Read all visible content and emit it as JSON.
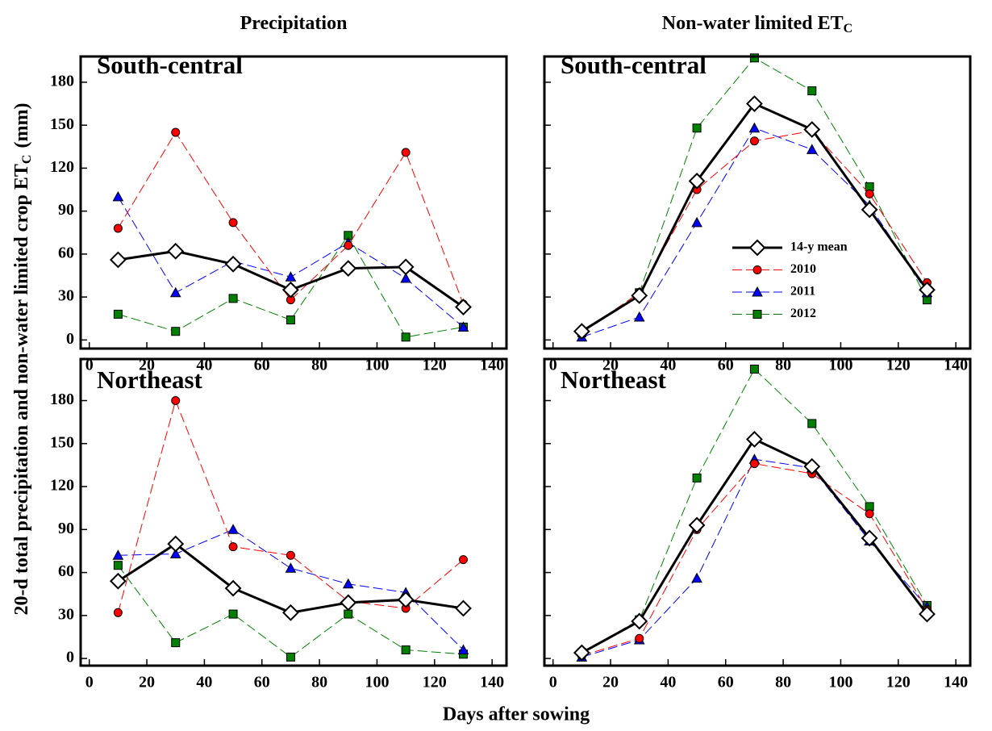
{
  "figure": {
    "xlabel": "Days after sowing",
    "ylabel": "20-d total precipitation and non-water limited crop ET",
    "ylabel_subscript": "C",
    "ylabel_unit": "(mm)"
  },
  "chart_data": [
    {
      "type": "line",
      "title": "Precipitation",
      "panel_label": "South-central",
      "x": [
        10,
        30,
        50,
        70,
        90,
        110,
        130
      ],
      "xlim": [
        -3,
        145
      ],
      "ylim": [
        -6,
        198
      ],
      "xticks": [
        0,
        20,
        40,
        60,
        80,
        100,
        120,
        140
      ],
      "yticks": [
        0,
        30,
        60,
        90,
        120,
        150,
        180
      ],
      "show_ytick_labels": true,
      "series": [
        {
          "name": "14-y mean",
          "color": "#000000",
          "marker": "diamond",
          "dashed": false,
          "values": [
            56,
            62,
            53,
            35,
            50,
            51,
            23
          ]
        },
        {
          "name": "2010",
          "color": "#ff0000",
          "marker": "circle",
          "dashed": true,
          "values": [
            78,
            145,
            82,
            28,
            66,
            131,
            25
          ]
        },
        {
          "name": "2011",
          "color": "#0000ff",
          "marker": "triangle",
          "dashed": true,
          "values": [
            100,
            33,
            55,
            44,
            68,
            43,
            9
          ]
        },
        {
          "name": "2012",
          "color": "#008000",
          "marker": "square",
          "dashed": true,
          "values": [
            18,
            6,
            29,
            14,
            73,
            2,
            9
          ]
        }
      ]
    },
    {
      "type": "line",
      "title": "Non-water limited ET",
      "title_subscript": "C",
      "panel_label": "South-central",
      "x": [
        10,
        30,
        50,
        70,
        90,
        110,
        130
      ],
      "xlim": [
        -3,
        145
      ],
      "ylim": [
        -6,
        198
      ],
      "xticks": [
        0,
        20,
        40,
        60,
        80,
        100,
        120,
        140
      ],
      "yticks": [
        0,
        30,
        60,
        90,
        120,
        150,
        180
      ],
      "show_ytick_labels": false,
      "legend": "right",
      "series": [
        {
          "name": "14-y mean",
          "color": "#000000",
          "marker": "diamond",
          "dashed": false,
          "values": [
            6,
            31,
            111,
            165,
            147,
            91,
            35
          ]
        },
        {
          "name": "2010",
          "color": "#ff0000",
          "marker": "circle",
          "dashed": true,
          "values": [
            5,
            33,
            105,
            139,
            146,
            102,
            40
          ]
        },
        {
          "name": "2011",
          "color": "#0000ff",
          "marker": "triangle",
          "dashed": true,
          "values": [
            2,
            16,
            82,
            148,
            133,
            94,
            33
          ]
        },
        {
          "name": "2012",
          "color": "#008000",
          "marker": "square",
          "dashed": true,
          "values": [
            5,
            33,
            148,
            197,
            174,
            107,
            28
          ]
        }
      ]
    },
    {
      "type": "line",
      "panel_label": "Northeast",
      "x": [
        10,
        30,
        50,
        70,
        90,
        110,
        130
      ],
      "xlim": [
        -3,
        145
      ],
      "ylim": [
        -5,
        209
      ],
      "xticks": [
        0,
        20,
        40,
        60,
        80,
        100,
        120,
        140
      ],
      "yticks": [
        0,
        30,
        60,
        90,
        120,
        150,
        180
      ],
      "show_ytick_labels": true,
      "series": [
        {
          "name": "14-y mean",
          "color": "#000000",
          "marker": "diamond",
          "dashed": false,
          "values": [
            54,
            80,
            49,
            32,
            39,
            41,
            35
          ]
        },
        {
          "name": "2010",
          "color": "#ff0000",
          "marker": "circle",
          "dashed": true,
          "values": [
            32,
            180,
            78,
            72,
            40,
            35,
            69
          ]
        },
        {
          "name": "2011",
          "color": "#0000ff",
          "marker": "triangle",
          "dashed": true,
          "values": [
            72,
            73,
            90,
            63,
            52,
            46,
            6
          ]
        },
        {
          "name": "2012",
          "color": "#008000",
          "marker": "square",
          "dashed": true,
          "values": [
            65,
            11,
            31,
            1,
            31,
            6,
            3
          ]
        }
      ]
    },
    {
      "type": "line",
      "panel_label": "Northeast",
      "x": [
        10,
        30,
        50,
        70,
        90,
        110,
        130
      ],
      "xlim": [
        -3,
        145
      ],
      "ylim": [
        -5,
        209
      ],
      "xticks": [
        0,
        20,
        40,
        60,
        80,
        100,
        120,
        140
      ],
      "yticks": [
        0,
        30,
        60,
        90,
        120,
        150,
        180
      ],
      "show_ytick_labels": false,
      "series": [
        {
          "name": "14-y mean",
          "color": "#000000",
          "marker": "diamond",
          "dashed": false,
          "values": [
            4,
            26,
            93,
            153,
            134,
            84,
            31
          ]
        },
        {
          "name": "2010",
          "color": "#ff0000",
          "marker": "circle",
          "dashed": true,
          "values": [
            2,
            14,
            90,
            136,
            129,
            101,
            34
          ]
        },
        {
          "name": "2011",
          "color": "#0000ff",
          "marker": "triangle",
          "dashed": true,
          "values": [
            1,
            13,
            56,
            139,
            133,
            82,
            36
          ]
        },
        {
          "name": "2012",
          "color": "#008000",
          "marker": "square",
          "dashed": true,
          "values": [
            4,
            27,
            126,
            202,
            164,
            106,
            37
          ]
        }
      ]
    }
  ]
}
